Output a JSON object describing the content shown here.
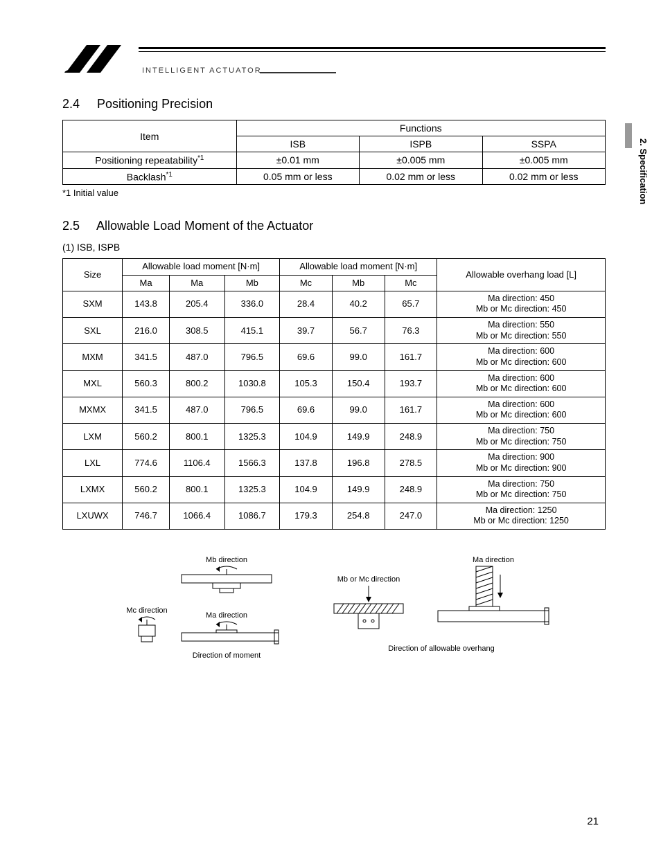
{
  "brand": {
    "text": "INTELLIGENT ACTUATOR"
  },
  "sideTab": {
    "label": "2. Specification"
  },
  "section24": {
    "num": "2.4",
    "title": "Positioning Precision",
    "table": {
      "itemHeader": "Item",
      "funcHeader": "Functions",
      "cols": [
        "ISB",
        "ISPB",
        "SSPA"
      ],
      "rows": [
        {
          "label": "Positioning repeatability",
          "sup": "*1",
          "vals": [
            "±0.01 mm",
            "±0.005 mm",
            "±0.005 mm"
          ]
        },
        {
          "label": "Backlash",
          "sup": "*1",
          "vals": [
            "0.05 mm or less",
            "0.02 mm or less",
            "0.02 mm or less"
          ]
        }
      ]
    },
    "footnote": "*1 Initial value"
  },
  "section25": {
    "num": "2.5",
    "title": "Allowable Load Moment of the Actuator",
    "sub": "(1)  ISB, ISPB",
    "table": {
      "sizeHeader": "Size",
      "group1Header": "Allowable load moment [N·m]",
      "group2Header": "Allowable load moment [N·m]",
      "overhangHeader": "Allowable overhang load [L]",
      "subcols1": [
        "Ma",
        "Ma",
        "Mb"
      ],
      "subcols2": [
        "Mc",
        "Mb",
        "Mc"
      ],
      "rows": [
        {
          "size": "SXM",
          "v": [
            "143.8",
            "205.4",
            "336.0",
            "28.4",
            "40.2",
            "65.7"
          ],
          "oh1": "Ma direction: 450",
          "oh2": "Mb or Mc direction: 450"
        },
        {
          "size": "SXL",
          "v": [
            "216.0",
            "308.5",
            "415.1",
            "39.7",
            "56.7",
            "76.3"
          ],
          "oh1": "Ma direction: 550",
          "oh2": "Mb or Mc direction: 550"
        },
        {
          "size": "MXM",
          "v": [
            "341.5",
            "487.0",
            "796.5",
            "69.6",
            "99.0",
            "161.7"
          ],
          "oh1": "Ma direction: 600",
          "oh2": "Mb or Mc direction: 600"
        },
        {
          "size": "MXL",
          "v": [
            "560.3",
            "800.2",
            "1030.8",
            "105.3",
            "150.4",
            "193.7"
          ],
          "oh1": "Ma direction: 600",
          "oh2": "Mb or Mc direction: 600"
        },
        {
          "size": "MXMX",
          "v": [
            "341.5",
            "487.0",
            "796.5",
            "69.6",
            "99.0",
            "161.7"
          ],
          "oh1": "Ma direction: 600",
          "oh2": "Mb or Mc direction: 600"
        },
        {
          "size": "LXM",
          "v": [
            "560.2",
            "800.1",
            "1325.3",
            "104.9",
            "149.9",
            "248.9"
          ],
          "oh1": "Ma direction: 750",
          "oh2": "Mb or Mc direction: 750"
        },
        {
          "size": "LXL",
          "v": [
            "774.6",
            "1106.4",
            "1566.3",
            "137.8",
            "196.8",
            "278.5"
          ],
          "oh1": "Ma direction: 900",
          "oh2": "Mb or Mc direction: 900"
        },
        {
          "size": "LXMX",
          "v": [
            "560.2",
            "800.1",
            "1325.3",
            "104.9",
            "149.9",
            "248.9"
          ],
          "oh1": "Ma direction: 750",
          "oh2": "Mb or Mc direction: 750"
        },
        {
          "size": "LXUWX",
          "v": [
            "746.7",
            "1066.4",
            "1086.7",
            "179.3",
            "254.8",
            "247.0"
          ],
          "oh1": "Ma direction: 1250",
          "oh2": "Mb or Mc direction: 1250"
        }
      ]
    }
  },
  "diagrams": {
    "mbDir": "Mb direction",
    "mcDir": "Mc direction",
    "maDir": "Ma direction",
    "maDir2": "Ma direction",
    "mbOrMc": "Mb or Mc direction",
    "caption1": "Direction of moment",
    "caption2": "Direction of allowable overhang"
  },
  "pageNumber": "21"
}
